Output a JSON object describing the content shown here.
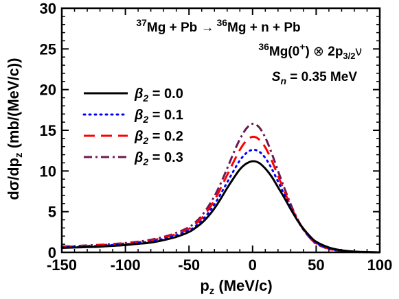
{
  "chart_data": {
    "type": "line",
    "xlabel": {
      "main": "p",
      "sub": "z",
      "rest": " (MeV/c)"
    },
    "ylabel": {
      "p1": "d",
      "sigma": "σ",
      "p2": "/dp",
      "sub": "z",
      "rest": " (mb/(MeV/c))"
    },
    "xlim": [
      -150,
      100
    ],
    "ylim": [
      0,
      30
    ],
    "xticks": [
      -150,
      -100,
      -50,
      0,
      50,
      100
    ],
    "yticks": [
      0,
      5,
      10,
      15,
      20,
      25,
      30
    ],
    "grid": false,
    "legend_position": "center-left",
    "annotations": {
      "reaction": {
        "m1": "37",
        "t1": "Mg + Pb ",
        "arrow": "→",
        "m2": " 36",
        "t2": "Mg + n + Pb"
      },
      "config": {
        "m": "36",
        "t1": "Mg(0",
        "sup": "+",
        "t2": ") ",
        "otimes": "⊗",
        "t3": " 2p",
        "sub": "3/2",
        "nu": "ν"
      },
      "sn": {
        "S": "S",
        "n": "n",
        "rest": " = 0.35 MeV"
      }
    },
    "series": [
      {
        "name": "β2 = 0.0",
        "symbol": "β",
        "sub": "2",
        "value_text": " = 0.0",
        "color": "#000000",
        "dash": "",
        "peak": 11.2,
        "tail": 0.55
      },
      {
        "name": "β2 = 0.1",
        "symbol": "β",
        "sub": "2",
        "value_text": " = 0.1",
        "color": "#0000ff",
        "dash": "2,6",
        "peak": 12.6,
        "tail": 0.62
      },
      {
        "name": "β2 = 0.2",
        "symbol": "β",
        "sub": "2",
        "value_text": " = 0.2",
        "color": "#ff0000",
        "dash": "16,9",
        "peak": 14.2,
        "tail": 0.68
      },
      {
        "name": "β2 = 0.3",
        "symbol": "β",
        "sub": "2",
        "value_text": " = 0.3",
        "color": "#6b1a4f",
        "dash": "12,5,3,5",
        "peak": 15.8,
        "tail": 0.72
      }
    ],
    "x": [
      -150,
      -140,
      -130,
      -120,
      -110,
      -100,
      -90,
      -80,
      -70,
      -60,
      -50,
      -45,
      -40,
      -35,
      -30,
      -25,
      -20,
      -15,
      -10,
      -5,
      0,
      5,
      10,
      15,
      20,
      25,
      30,
      35,
      40,
      45,
      50,
      60,
      70,
      80,
      90,
      100
    ],
    "y": {
      "b0": [
        0.55,
        0.6,
        0.65,
        0.7,
        0.8,
        0.9,
        1.05,
        1.2,
        1.5,
        1.9,
        2.5,
        3.0,
        3.6,
        4.4,
        5.4,
        6.6,
        7.9,
        9.1,
        10.2,
        10.9,
        11.2,
        11.0,
        10.3,
        9.3,
        8.0,
        6.7,
        5.3,
        4.0,
        2.9,
        2.0,
        1.3,
        0.6,
        0.25,
        0.1,
        0.04,
        0.0
      ],
      "b1": [
        0.62,
        0.67,
        0.73,
        0.8,
        0.9,
        1.0,
        1.15,
        1.35,
        1.65,
        2.1,
        2.7,
        3.2,
        3.9,
        4.8,
        5.9,
        7.2,
        8.6,
        10.0,
        11.3,
        12.2,
        12.6,
        12.4,
        11.6,
        10.3,
        8.7,
        7.1,
        5.5,
        4.0,
        2.8,
        1.9,
        1.2,
        0.5,
        0.2,
        0.08,
        0.03,
        0.0
      ],
      "b2": [
        0.68,
        0.74,
        0.8,
        0.88,
        0.98,
        1.1,
        1.25,
        1.45,
        1.8,
        2.25,
        2.9,
        3.45,
        4.2,
        5.2,
        6.4,
        7.9,
        9.5,
        11.1,
        12.6,
        13.7,
        14.2,
        13.9,
        12.9,
        11.3,
        9.4,
        7.5,
        5.7,
        4.1,
        2.8,
        1.8,
        1.1,
        0.45,
        0.17,
        0.06,
        0.02,
        0.0
      ],
      "b3": [
        0.72,
        0.78,
        0.85,
        0.93,
        1.03,
        1.15,
        1.32,
        1.55,
        1.9,
        2.4,
        3.1,
        3.7,
        4.5,
        5.6,
        6.9,
        8.5,
        10.3,
        12.2,
        13.9,
        15.2,
        15.8,
        15.4,
        14.1,
        12.2,
        10.0,
        7.9,
        5.9,
        4.2,
        2.8,
        1.8,
        1.05,
        0.42,
        0.15,
        0.05,
        0.02,
        0.0
      ]
    }
  }
}
